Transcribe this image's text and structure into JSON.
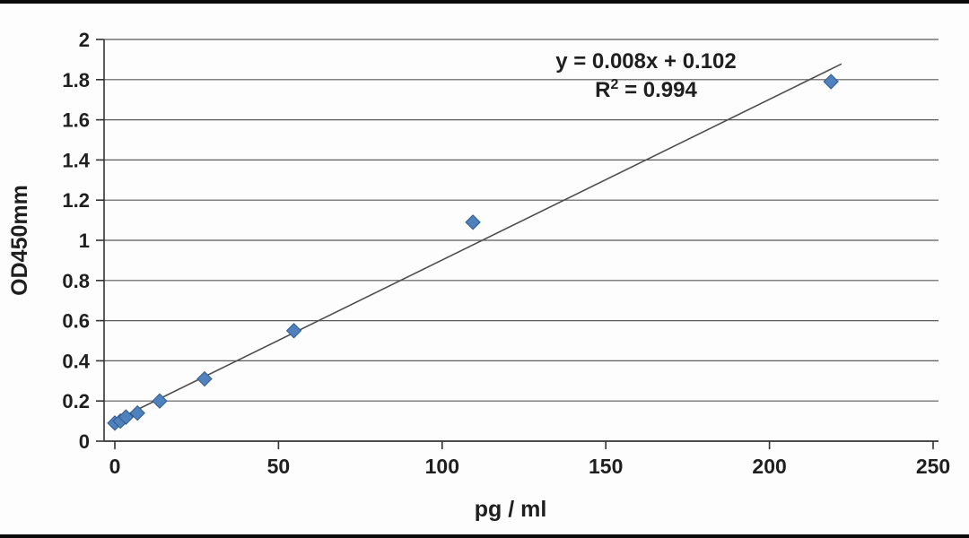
{
  "chart_data": {
    "type": "scatter",
    "title": "",
    "xlabel": "pg / ml",
    "ylabel": "OD450mm",
    "xlim": [
      0,
      250
    ],
    "ylim": [
      0,
      2
    ],
    "grid": "horizontal",
    "legend": "none",
    "x_ticks": {
      "values": [
        0,
        50,
        100,
        150,
        200,
        250
      ],
      "labels": [
        "0",
        "50",
        "100",
        "150",
        "200",
        "250"
      ]
    },
    "y_ticks": {
      "values": [
        0,
        0.2,
        0.4,
        0.6,
        0.8,
        1,
        1.2,
        1.4,
        1.6,
        1.8,
        2
      ],
      "labels": [
        "0",
        "0.2",
        "0.4",
        "0.6",
        "0.8",
        "1",
        "1.2",
        "1.4",
        "1.6",
        "1.8",
        "2"
      ]
    },
    "points": [
      [
        0,
        0.09
      ],
      [
        1.7,
        0.1
      ],
      [
        3.4,
        0.12
      ],
      [
        6.9,
        0.14
      ],
      [
        13.7,
        0.2
      ],
      [
        27.4,
        0.31
      ],
      [
        54.7,
        0.55
      ],
      [
        109.4,
        1.09
      ],
      [
        218.8,
        1.79
      ]
    ],
    "trendline": {
      "slope": 0.008,
      "intercept": 0.102,
      "x_start": 0,
      "x_end": 222,
      "equation": "y = 0.008x + 0.102",
      "r_squared": "0.994",
      "r_squared_parts": {
        "base": "R",
        "sup": "2",
        "rest": " = 0.994"
      }
    },
    "colors": {
      "marker_fill": "#4f81bd",
      "marker_stroke": "#2e5a8f",
      "trendline": "#4d4d4d",
      "gridline": "#5a5a5a",
      "axis": "#333333",
      "text": "#1f1f1f"
    }
  }
}
